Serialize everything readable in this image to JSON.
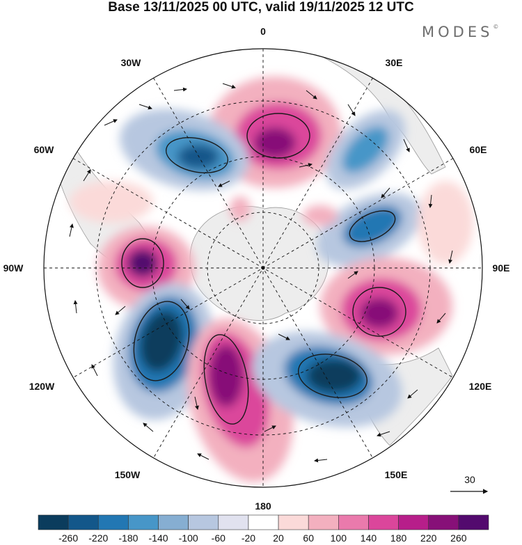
{
  "title": "Base 13/11/2025 00 UTC, valid 19/11/2025 12 UTC",
  "brand": "MODES",
  "brand_mark": "©",
  "longitude_labels": {
    "lon_0": "0",
    "lon_30e": "30E",
    "lon_60e": "60E",
    "lon_90e": "90E",
    "lon_120e": "120E",
    "lon_150e": "150E",
    "lon_180": "180",
    "lon_150w": "150W",
    "lon_120w": "120W",
    "lon_90w": "90W",
    "lon_60w": "60W",
    "lon_30w": "30W"
  },
  "vector_reference": {
    "label": "30"
  },
  "colorbar": {
    "colors": [
      "#0b3c5d",
      "#13578a",
      "#2277b3",
      "#4796c8",
      "#86aed2",
      "#b7c7e0",
      "#e1e2ef",
      "#ffffff",
      "#fbdad9",
      "#f3b0bf",
      "#ea7aac",
      "#db469b",
      "#b71e8a",
      "#871078",
      "#530a6e"
    ],
    "ticks": [
      "-260",
      "-220",
      "-180",
      "-140",
      "-100",
      "-60",
      "-20",
      "20",
      "60",
      "100",
      "140",
      "180",
      "220",
      "260"
    ]
  }
}
